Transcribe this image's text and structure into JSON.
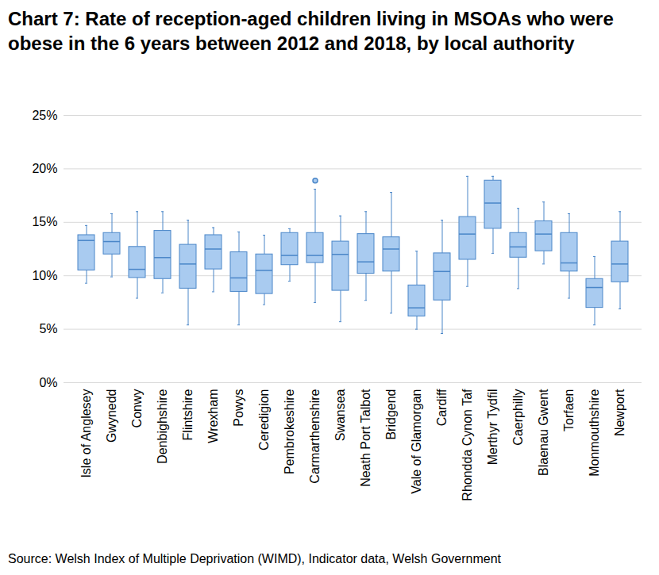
{
  "chart_data": {
    "type": "box",
    "title": "Chart 7: Rate of reception-aged children living in MSOAs who were obese in the 6 years between 2012 and 2018, by local authority",
    "caption": "Source: Welsh Index of Multiple Deprivation (WIMD), Indicator data, Welsh Government",
    "categories": [
      "Isle of Anglesey",
      "Gwynedd",
      "Conwy",
      "Denbighshire",
      "Flintshire",
      "Wrexham",
      "Powys",
      "Ceredigion",
      "Pembrokeshire",
      "Carmarthenshire",
      "Swansea",
      "Neath Port Talbot",
      "Bridgend",
      "Vale of Glamorgan",
      "Cardiff",
      "Rhondda Cynon Taf",
      "Merthyr Tydfil",
      "Caerphilly",
      "Blaenau Gwent",
      "Torfaen",
      "Monmouthshire",
      "Newport"
    ],
    "min": [
      9.3,
      9.9,
      7.9,
      8.4,
      5.4,
      8.5,
      5.4,
      7.3,
      9.5,
      7.5,
      5.7,
      7.7,
      6.5,
      5.0,
      4.6,
      9.0,
      12.1,
      8.8,
      11.1,
      7.9,
      5.4,
      6.9
    ],
    "q1": [
      10.5,
      12.0,
      9.8,
      9.7,
      8.8,
      10.6,
      8.5,
      8.3,
      11.0,
      11.2,
      8.6,
      10.2,
      10.4,
      6.2,
      7.7,
      11.5,
      14.4,
      11.7,
      12.3,
      10.4,
      7.0,
      9.4
    ],
    "median": [
      13.3,
      13.2,
      10.6,
      11.7,
      11.1,
      12.5,
      9.8,
      10.5,
      11.9,
      11.9,
      12.0,
      11.3,
      12.5,
      7.0,
      10.4,
      13.9,
      16.8,
      12.7,
      13.9,
      11.2,
      8.9,
      11.1
    ],
    "q3": [
      13.8,
      14.0,
      12.7,
      14.2,
      12.9,
      13.8,
      12.2,
      12.0,
      14.0,
      14.0,
      13.2,
      13.9,
      13.6,
      9.1,
      12.1,
      15.5,
      18.9,
      14.0,
      15.1,
      14.0,
      9.7,
      13.2
    ],
    "max": [
      14.7,
      15.8,
      16.0,
      16.0,
      15.2,
      14.5,
      14.1,
      13.8,
      14.4,
      18.1,
      15.6,
      16.0,
      17.8,
      12.3,
      15.2,
      19.3,
      19.3,
      16.3,
      16.9,
      15.8,
      11.8,
      16.0
    ],
    "outliers": [
      [],
      [],
      [],
      [],
      [],
      [],
      [],
      [],
      [],
      [
        18.9
      ],
      [],
      [],
      [],
      [],
      [],
      [],
      [],
      [],
      [],
      [],
      [],
      []
    ],
    "color": "#a9cbf0",
    "ylim": [
      0,
      25
    ],
    "yticks": [
      {
        "value": 0,
        "label": "0%"
      },
      {
        "value": 5,
        "label": "5%"
      },
      {
        "value": 10,
        "label": "10%"
      },
      {
        "value": 15,
        "label": "15%"
      },
      {
        "value": 20,
        "label": "20%"
      },
      {
        "value": 25,
        "label": "25%"
      }
    ],
    "grid": true
  }
}
